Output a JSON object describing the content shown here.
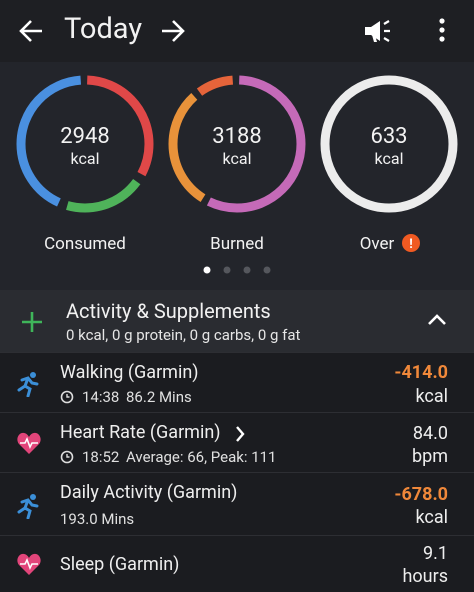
{
  "header": {
    "title": "Today"
  },
  "rings": [
    {
      "value": "2948",
      "unit": "kcal",
      "label": "Consumed"
    },
    {
      "value": "3188",
      "unit": "kcal",
      "label": "Burned"
    },
    {
      "value": "633",
      "unit": "kcal",
      "label": "Over"
    }
  ],
  "section": {
    "title": "Activity & Supplements",
    "summary": "0 kcal, 0 g protein, 0 g carbs, 0 g fat"
  },
  "items": [
    {
      "name": "Walking (Garmin)",
      "time": "14:38",
      "detail": "86.2 Mins",
      "value": "-414.0",
      "unit": "kcal"
    },
    {
      "name": "Heart Rate (Garmin)",
      "time": "18:52",
      "detail": "Average: 66, Peak: 111",
      "value": "84.0",
      "unit": "bpm"
    },
    {
      "name": "Daily Activity (Garmin)",
      "detail": "193.0 Mins",
      "value": "-678.0",
      "unit": "kcal"
    },
    {
      "name": "Sleep (Garmin)",
      "value": "9.1",
      "unit": "hours"
    }
  ]
}
